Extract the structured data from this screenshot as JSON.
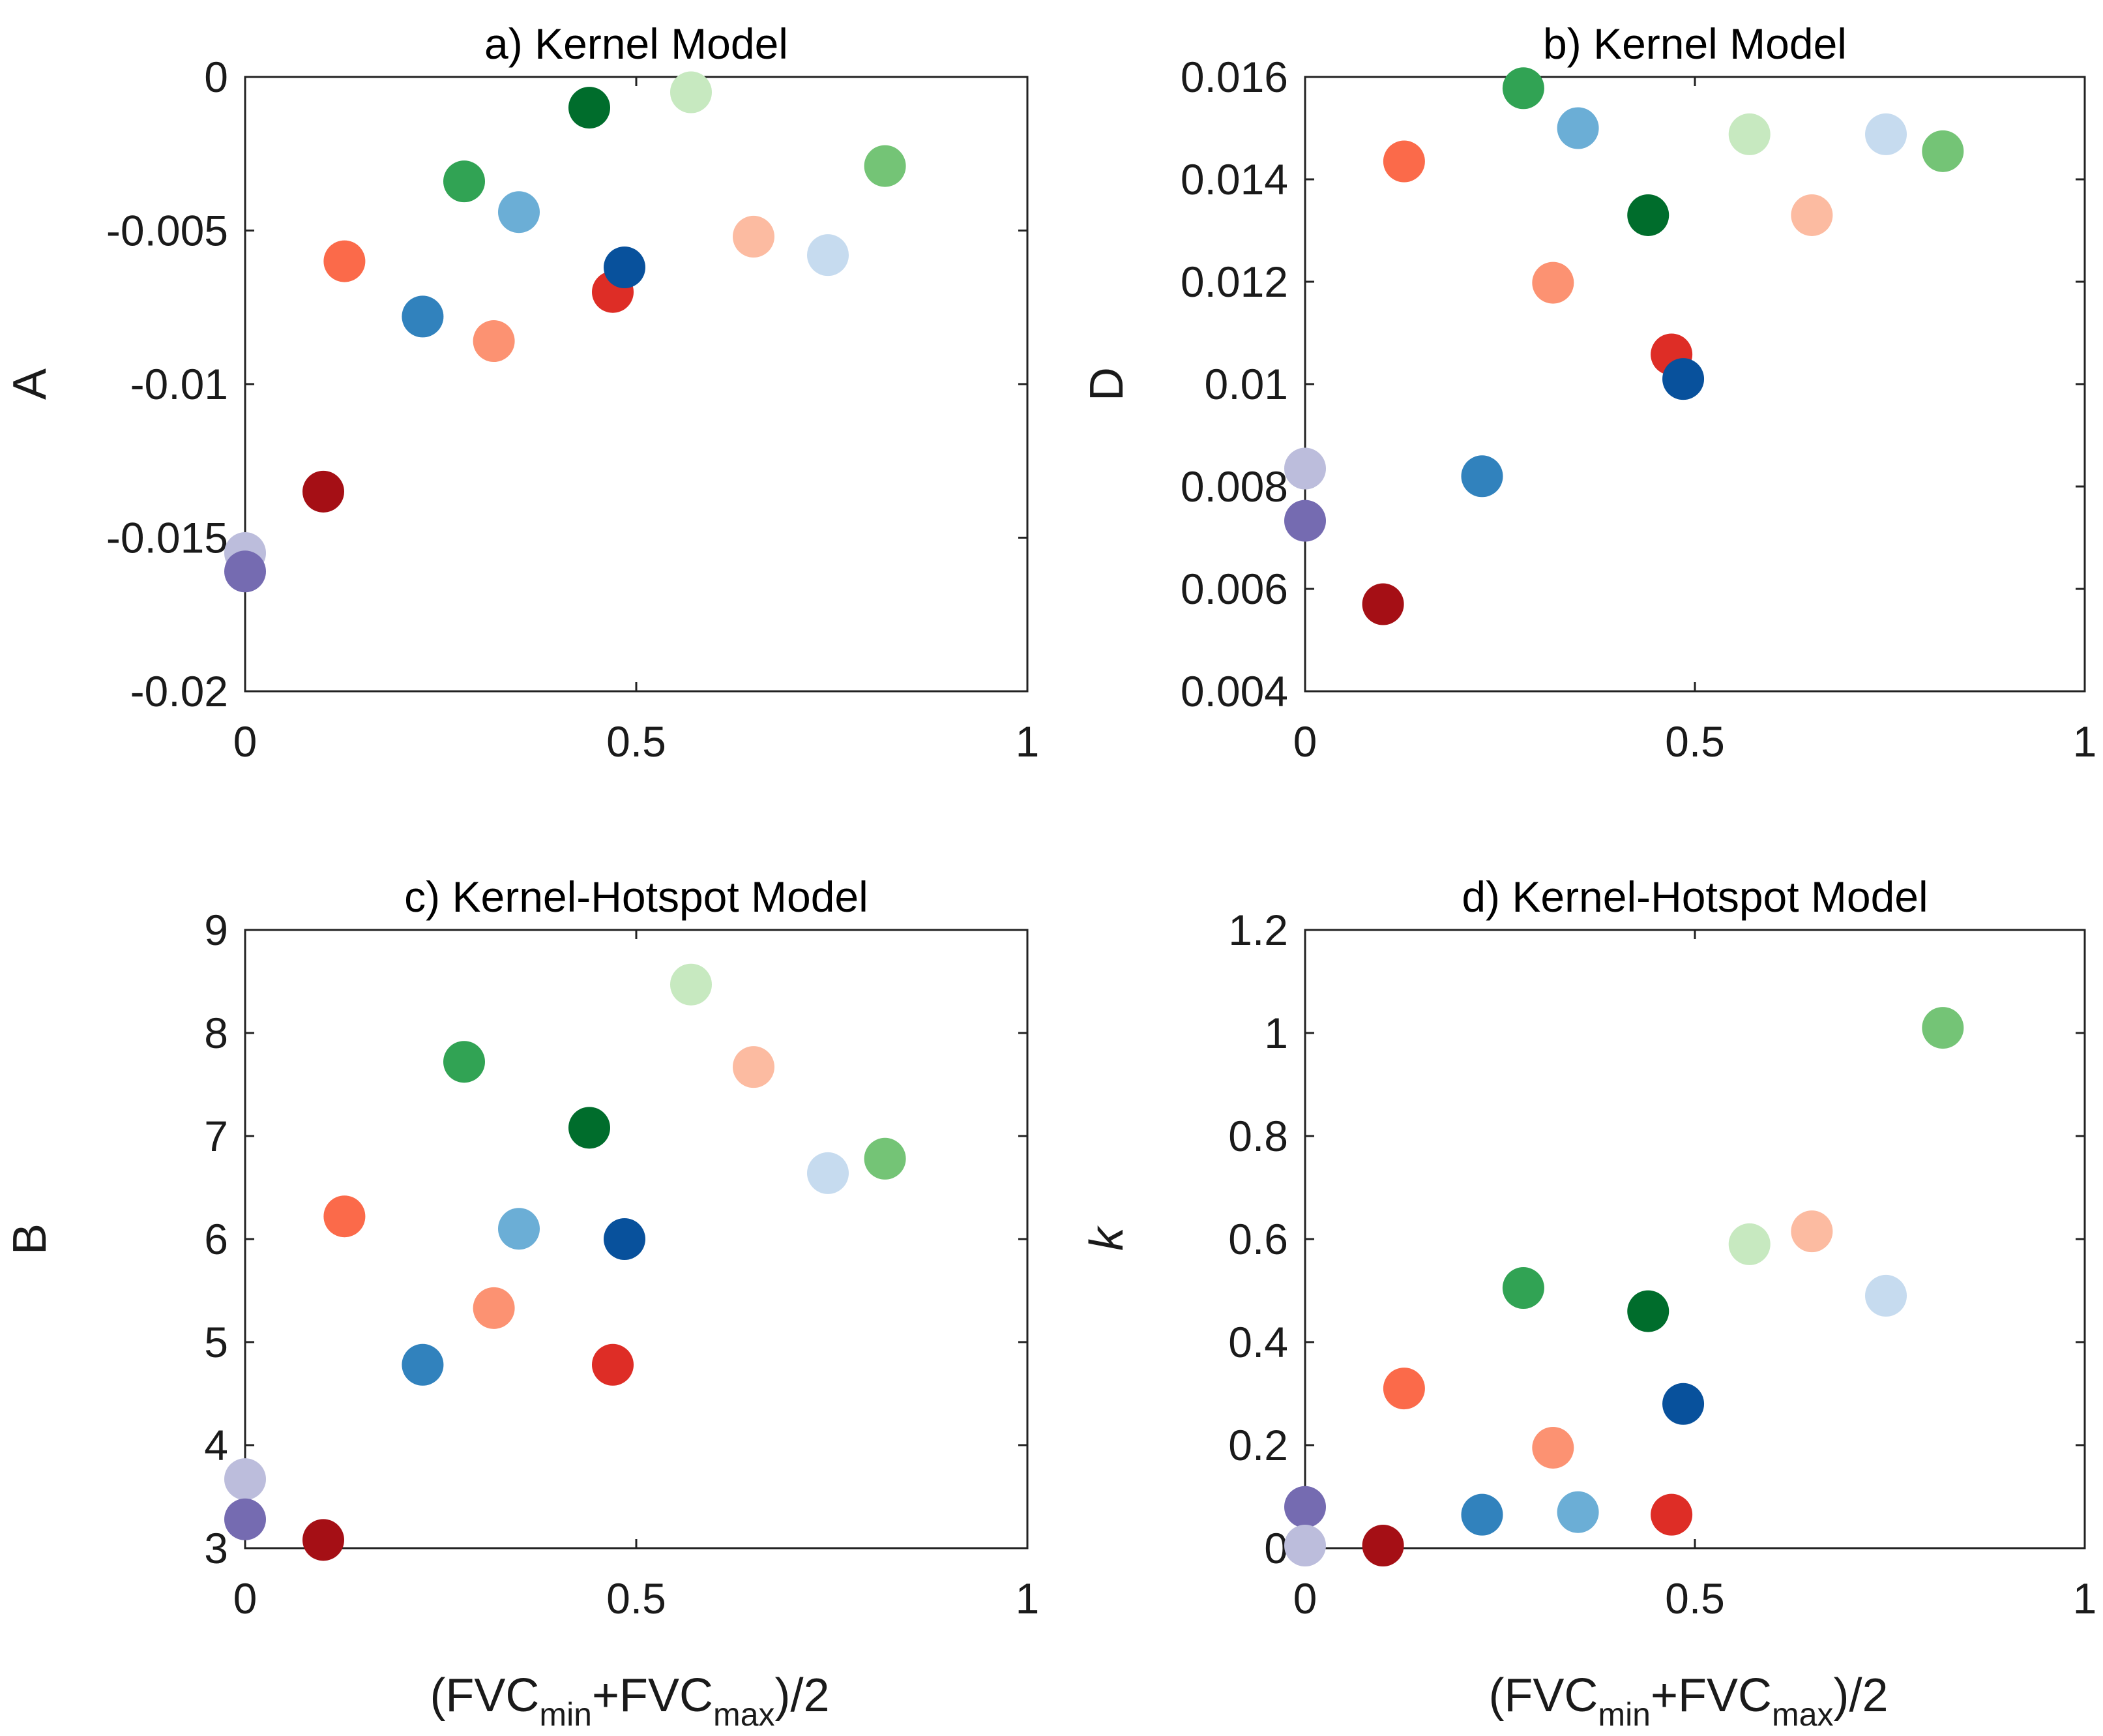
{
  "x_label": {
    "pre": "(FVC",
    "sub1": "min",
    "mid": "+FVC",
    "sub2": "max",
    "post": ")/2"
  },
  "chart_data": [
    {
      "type": "scatter",
      "panel": "a",
      "title": "a) Kernel Model",
      "xlabel": "",
      "ylabel": "A",
      "xlim": [
        0,
        1
      ],
      "ylim": [
        -0.02,
        0
      ],
      "xticks": [
        0,
        0.5,
        1
      ],
      "xtick_labels": [
        "0",
        "0.5",
        "1"
      ],
      "yticks": [
        -0.02,
        -0.015,
        -0.01,
        -0.005,
        0
      ],
      "ytick_labels": [
        "-0.02",
        "-0.015",
        "-0.01",
        "-0.005",
        "0"
      ],
      "points": [
        {
          "x": 0.0,
          "y": -0.0155,
          "color": "#bcbddc"
        },
        {
          "x": 0.0,
          "y": -0.0161,
          "color": "#756bb1"
        },
        {
          "x": 0.1,
          "y": -0.0135,
          "color": "#a50f15"
        },
        {
          "x": 0.127,
          "y": -0.006,
          "color": "#fb6a4a"
        },
        {
          "x": 0.227,
          "y": -0.0078,
          "color": "#3182bd"
        },
        {
          "x": 0.28,
          "y": -0.0034,
          "color": "#31a354"
        },
        {
          "x": 0.318,
          "y": -0.0086,
          "color": "#fc9272"
        },
        {
          "x": 0.35,
          "y": -0.0044,
          "color": "#6baed6"
        },
        {
          "x": 0.44,
          "y": -0.001,
          "color": "#006d2c"
        },
        {
          "x": 0.47,
          "y": -0.007,
          "color": "#de2d26"
        },
        {
          "x": 0.485,
          "y": -0.0062,
          "color": "#08519c"
        },
        {
          "x": 0.57,
          "y": -0.0005,
          "color": "#c7e9c0"
        },
        {
          "x": 0.65,
          "y": -0.0052,
          "color": "#fcbba1"
        },
        {
          "x": 0.745,
          "y": -0.0058,
          "color": "#c6dbef"
        },
        {
          "x": 0.818,
          "y": -0.0029,
          "color": "#74c476"
        }
      ]
    },
    {
      "type": "scatter",
      "panel": "b",
      "title": "b) Kernel Model",
      "xlabel": "",
      "ylabel": "D",
      "xlim": [
        0,
        1
      ],
      "ylim": [
        0.004,
        0.016
      ],
      "xticks": [
        0,
        0.5,
        1
      ],
      "xtick_labels": [
        "0",
        "0.5",
        "1"
      ],
      "yticks": [
        0.004,
        0.006,
        0.008,
        0.01,
        0.012,
        0.014,
        0.016
      ],
      "ytick_labels": [
        "0.004",
        "0.006",
        "0.008",
        "0.01",
        "0.012",
        "0.014",
        "0.016"
      ],
      "points": [
        {
          "x": 0.0,
          "y": 0.00835,
          "color": "#bcbddc"
        },
        {
          "x": 0.0,
          "y": 0.00733,
          "color": "#756bb1"
        },
        {
          "x": 0.1,
          "y": 0.0057,
          "color": "#a50f15"
        },
        {
          "x": 0.127,
          "y": 0.01435,
          "color": "#fb6a4a"
        },
        {
          "x": 0.227,
          "y": 0.0082,
          "color": "#3182bd"
        },
        {
          "x": 0.28,
          "y": 0.01578,
          "color": "#31a354"
        },
        {
          "x": 0.318,
          "y": 0.01198,
          "color": "#fc9272"
        },
        {
          "x": 0.35,
          "y": 0.015,
          "color": "#6baed6"
        },
        {
          "x": 0.44,
          "y": 0.0133,
          "color": "#006d2c"
        },
        {
          "x": 0.47,
          "y": 0.01058,
          "color": "#de2d26"
        },
        {
          "x": 0.485,
          "y": 0.0101,
          "color": "#08519c"
        },
        {
          "x": 0.57,
          "y": 0.01488,
          "color": "#c7e9c0"
        },
        {
          "x": 0.65,
          "y": 0.0133,
          "color": "#fcbba1"
        },
        {
          "x": 0.745,
          "y": 0.01488,
          "color": "#c6dbef"
        },
        {
          "x": 0.818,
          "y": 0.01455,
          "color": "#74c476"
        }
      ]
    },
    {
      "type": "scatter",
      "panel": "c",
      "title": "c) Kernel-Hotspot Model",
      "xlabel": "(FVC_min+FVC_max)/2",
      "ylabel": "B",
      "xlim": [
        0,
        1
      ],
      "ylim": [
        3,
        9
      ],
      "xticks": [
        0,
        0.5,
        1
      ],
      "xtick_labels": [
        "0",
        "0.5",
        "1"
      ],
      "yticks": [
        3,
        4,
        5,
        6,
        7,
        8,
        9
      ],
      "ytick_labels": [
        "3",
        "4",
        "5",
        "6",
        "7",
        "8",
        "9"
      ],
      "points": [
        {
          "x": 0.0,
          "y": 3.67,
          "color": "#bcbddc"
        },
        {
          "x": 0.0,
          "y": 3.28,
          "color": "#756bb1"
        },
        {
          "x": 0.1,
          "y": 3.08,
          "color": "#a50f15"
        },
        {
          "x": 0.127,
          "y": 6.22,
          "color": "#fb6a4a"
        },
        {
          "x": 0.227,
          "y": 4.78,
          "color": "#3182bd"
        },
        {
          "x": 0.28,
          "y": 7.72,
          "color": "#31a354"
        },
        {
          "x": 0.318,
          "y": 5.33,
          "color": "#fc9272"
        },
        {
          "x": 0.35,
          "y": 6.1,
          "color": "#6baed6"
        },
        {
          "x": 0.44,
          "y": 7.08,
          "color": "#006d2c"
        },
        {
          "x": 0.47,
          "y": 4.78,
          "color": "#de2d26"
        },
        {
          "x": 0.485,
          "y": 6.0,
          "color": "#08519c"
        },
        {
          "x": 0.57,
          "y": 8.47,
          "color": "#c7e9c0"
        },
        {
          "x": 0.65,
          "y": 7.67,
          "color": "#fcbba1"
        },
        {
          "x": 0.745,
          "y": 6.64,
          "color": "#c6dbef"
        },
        {
          "x": 0.818,
          "y": 6.78,
          "color": "#74c476"
        }
      ]
    },
    {
      "type": "scatter",
      "panel": "d",
      "title": "d) Kernel-Hotspot Model",
      "xlabel": "(FVC_min+FVC_max)/2",
      "ylabel": "k",
      "xlim": [
        0,
        1
      ],
      "ylim": [
        0,
        1.2
      ],
      "xticks": [
        0,
        0.5,
        1
      ],
      "xtick_labels": [
        "0",
        "0.5",
        "1"
      ],
      "yticks": [
        0,
        0.2,
        0.4,
        0.6,
        0.8,
        1,
        1.2
      ],
      "ytick_labels": [
        "0",
        "0.2",
        "0.4",
        "0.6",
        "0.8",
        "1",
        "1.2"
      ],
      "points": [
        {
          "x": 0.0,
          "y": 0.08,
          "color": "#756bb1"
        },
        {
          "x": 0.0,
          "y": 0.005,
          "color": "#bcbddc"
        },
        {
          "x": 0.1,
          "y": 0.005,
          "color": "#a50f15"
        },
        {
          "x": 0.127,
          "y": 0.31,
          "color": "#fb6a4a"
        },
        {
          "x": 0.227,
          "y": 0.065,
          "color": "#3182bd"
        },
        {
          "x": 0.28,
          "y": 0.505,
          "color": "#31a354"
        },
        {
          "x": 0.318,
          "y": 0.195,
          "color": "#fc9272"
        },
        {
          "x": 0.35,
          "y": 0.07,
          "color": "#6baed6"
        },
        {
          "x": 0.44,
          "y": 0.46,
          "color": "#006d2c"
        },
        {
          "x": 0.47,
          "y": 0.065,
          "color": "#de2d26"
        },
        {
          "x": 0.485,
          "y": 0.28,
          "color": "#08519c"
        },
        {
          "x": 0.57,
          "y": 0.59,
          "color": "#c7e9c0"
        },
        {
          "x": 0.65,
          "y": 0.615,
          "color": "#fcbba1"
        },
        {
          "x": 0.745,
          "y": 0.49,
          "color": "#c6dbef"
        },
        {
          "x": 0.818,
          "y": 1.01,
          "color": "#74c476"
        }
      ]
    }
  ]
}
